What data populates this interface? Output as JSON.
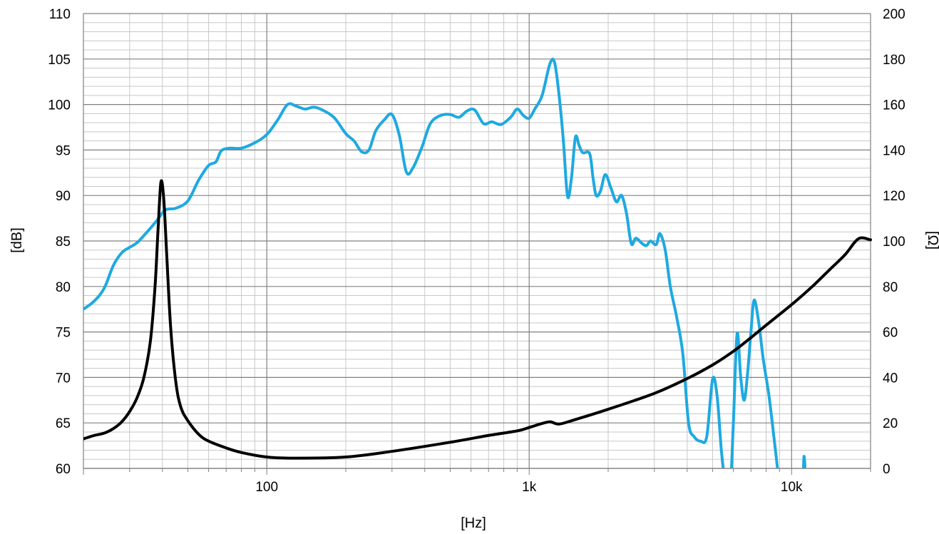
{
  "chart_data": {
    "type": "line",
    "x_scale": "log",
    "xlim": [
      20,
      20000
    ],
    "ylim_left": [
      60,
      110
    ],
    "ylim_right": [
      0,
      200
    ],
    "xlabel": "[Hz]",
    "ylabel_left": "[dB]",
    "ylabel_right": "[Ω]",
    "xticks": [
      {
        "value": 100,
        "label": "100"
      },
      {
        "value": 1000,
        "label": "1k"
      },
      {
        "value": 10000,
        "label": "10k"
      }
    ],
    "yticks_left": [
      {
        "value": 60,
        "label": "60"
      },
      {
        "value": 65,
        "label": "65"
      },
      {
        "value": 70,
        "label": "70"
      },
      {
        "value": 75,
        "label": "75"
      },
      {
        "value": 80,
        "label": "80"
      },
      {
        "value": 85,
        "label": "85"
      },
      {
        "value": 90,
        "label": "90"
      },
      {
        "value": 95,
        "label": "95"
      },
      {
        "value": 100,
        "label": "100"
      },
      {
        "value": 105,
        "label": "105"
      },
      {
        "value": 110,
        "label": "110"
      }
    ],
    "yticks_right": [
      {
        "value": 0,
        "label": "0"
      },
      {
        "value": 20,
        "label": "20"
      },
      {
        "value": 40,
        "label": "40"
      },
      {
        "value": 60,
        "label": "60"
      },
      {
        "value": 80,
        "label": "80"
      },
      {
        "value": 100,
        "label": "100"
      },
      {
        "value": 120,
        "label": "120"
      },
      {
        "value": 140,
        "label": "140"
      },
      {
        "value": 160,
        "label": "160"
      },
      {
        "value": 180,
        "label": "180"
      },
      {
        "value": 200,
        "label": "200"
      }
    ],
    "grid": true,
    "series": [
      {
        "axis": "left",
        "color": "#1ea9e1",
        "points": [
          [
            20,
            77.5
          ],
          [
            22,
            78.4
          ],
          [
            24,
            79.8
          ],
          [
            26,
            82.3
          ],
          [
            28,
            83.7
          ],
          [
            30,
            84.3
          ],
          [
            32,
            84.8
          ],
          [
            35,
            86
          ],
          [
            38,
            87.2
          ],
          [
            41,
            88.4
          ],
          [
            45,
            88.6
          ],
          [
            50,
            89.4
          ],
          [
            55,
            91.7
          ],
          [
            60,
            93.3
          ],
          [
            64,
            93.7
          ],
          [
            67,
            94.9
          ],
          [
            72,
            95.2
          ],
          [
            80,
            95.2
          ],
          [
            90,
            95.8
          ],
          [
            100,
            96.7
          ],
          [
            110,
            98.3
          ],
          [
            120,
            100
          ],
          [
            130,
            99.8
          ],
          [
            140,
            99.5
          ],
          [
            150,
            99.7
          ],
          [
            160,
            99.5
          ],
          [
            180,
            98.6
          ],
          [
            200,
            96.8
          ],
          [
            215,
            96
          ],
          [
            230,
            94.8
          ],
          [
            245,
            95
          ],
          [
            260,
            97.1
          ],
          [
            280,
            98.3
          ],
          [
            300,
            98.9
          ],
          [
            320,
            96.6
          ],
          [
            340,
            92.6
          ],
          [
            360,
            93
          ],
          [
            390,
            95.3
          ],
          [
            420,
            97.9
          ],
          [
            460,
            98.8
          ],
          [
            500,
            98.9
          ],
          [
            540,
            98.6
          ],
          [
            580,
            99.3
          ],
          [
            620,
            99.4
          ],
          [
            670,
            97.9
          ],
          [
            720,
            98.1
          ],
          [
            780,
            97.8
          ],
          [
            850,
            98.6
          ],
          [
            900,
            99.5
          ],
          [
            950,
            98.8
          ],
          [
            1000,
            98.5
          ],
          [
            1050,
            99.5
          ],
          [
            1120,
            101
          ],
          [
            1200,
            104.5
          ],
          [
            1250,
            104.6
          ],
          [
            1300,
            101
          ],
          [
            1350,
            96
          ],
          [
            1400,
            89.9
          ],
          [
            1450,
            92
          ],
          [
            1500,
            96.4
          ],
          [
            1550,
            95.5
          ],
          [
            1600,
            94.7
          ],
          [
            1700,
            94.6
          ],
          [
            1750,
            92
          ],
          [
            1800,
            90
          ],
          [
            1870,
            90.5
          ],
          [
            1950,
            92.3
          ],
          [
            2050,
            90.8
          ],
          [
            2150,
            89.3
          ],
          [
            2250,
            90
          ],
          [
            2350,
            88
          ],
          [
            2450,
            84.7
          ],
          [
            2550,
            85.3
          ],
          [
            2700,
            84.7
          ],
          [
            2800,
            84.5
          ],
          [
            2900,
            85
          ],
          [
            3050,
            84.6
          ],
          [
            3150,
            85.8
          ],
          [
            3300,
            84
          ],
          [
            3450,
            80
          ],
          [
            3650,
            76.6
          ],
          [
            3850,
            72.6
          ],
          [
            4050,
            65
          ],
          [
            4250,
            63.5
          ],
          [
            4500,
            63
          ],
          [
            4750,
            63.5
          ],
          [
            5000,
            69.8
          ],
          [
            5200,
            68
          ],
          [
            5400,
            62
          ],
          [
            5600,
            58
          ],
          [
            5800,
            56
          ],
          [
            6000,
            65
          ],
          [
            6200,
            74.8
          ],
          [
            6400,
            70
          ],
          [
            6600,
            67.5
          ],
          [
            6800,
            70.5
          ],
          [
            7000,
            75
          ],
          [
            7200,
            78.5
          ],
          [
            7500,
            76
          ],
          [
            7800,
            72
          ],
          [
            8200,
            68
          ],
          [
            8600,
            63
          ],
          [
            9000,
            58
          ]
        ]
      },
      {
        "axis": "left",
        "color": "#1ea9e1",
        "points": [
          [
            11050,
            57
          ],
          [
            11150,
            61.3
          ],
          [
            11300,
            59
          ]
        ]
      },
      {
        "axis": "right",
        "color": "#000000",
        "points": [
          [
            20,
            13
          ],
          [
            22,
            14.5
          ],
          [
            24,
            15.5
          ],
          [
            26,
            17.5
          ],
          [
            28,
            20.5
          ],
          [
            30,
            25
          ],
          [
            32,
            31
          ],
          [
            34,
            40
          ],
          [
            36,
            56
          ],
          [
            37.5,
            80
          ],
          [
            38.5,
            105
          ],
          [
            39.5,
            126
          ],
          [
            40.5,
            118
          ],
          [
            41.5,
            95
          ],
          [
            43,
            62
          ],
          [
            45,
            38
          ],
          [
            47,
            27
          ],
          [
            50,
            21
          ],
          [
            55,
            15
          ],
          [
            60,
            12
          ],
          [
            70,
            9
          ],
          [
            80,
            7
          ],
          [
            100,
            5
          ],
          [
            130,
            4.5
          ],
          [
            200,
            5
          ],
          [
            300,
            7.5
          ],
          [
            500,
            11.5
          ],
          [
            700,
            14.5
          ],
          [
            900,
            16.5
          ],
          [
            1000,
            18
          ],
          [
            1100,
            19.5
          ],
          [
            1200,
            20.5
          ],
          [
            1300,
            19.5
          ],
          [
            1500,
            21.5
          ],
          [
            2000,
            26
          ],
          [
            3000,
            33
          ],
          [
            4000,
            39.5
          ],
          [
            5000,
            45.5
          ],
          [
            6000,
            51.5
          ],
          [
            7000,
            57.5
          ],
          [
            8000,
            63
          ],
          [
            10000,
            72
          ],
          [
            12000,
            80
          ],
          [
            14000,
            87.5
          ],
          [
            16000,
            94
          ],
          [
            18000,
            101
          ],
          [
            20000,
            100.5
          ]
        ]
      }
    ]
  }
}
